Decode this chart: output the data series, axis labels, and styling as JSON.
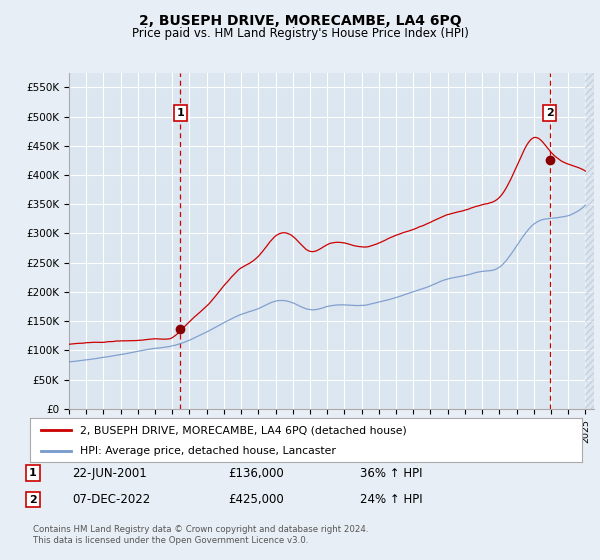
{
  "title": "2, BUSEPH DRIVE, MORECAMBE, LA4 6PQ",
  "subtitle": "Price paid vs. HM Land Registry's House Price Index (HPI)",
  "background_color": "#e8eef5",
  "plot_bg_color": "#dce6f0",
  "red_line_color": "#cc0000",
  "blue_line_color": "#7799cc",
  "grid_color": "#c8d4e8",
  "ylim": [
    0,
    575000
  ],
  "yticks": [
    0,
    50000,
    100000,
    150000,
    200000,
    250000,
    300000,
    350000,
    400000,
    450000,
    500000,
    550000
  ],
  "ytick_labels": [
    "£0",
    "£50K",
    "£100K",
    "£150K",
    "£200K",
    "£250K",
    "£300K",
    "£350K",
    "£400K",
    "£450K",
    "£500K",
    "£550K"
  ],
  "legend_label_red": "2, BUSEPH DRIVE, MORECAMBE, LA4 6PQ (detached house)",
  "legend_label_blue": "HPI: Average price, detached house, Lancaster",
  "sale1_date": "22-JUN-2001",
  "sale1_price": "£136,000",
  "sale1_hpi": "36% ↑ HPI",
  "sale2_date": "07-DEC-2022",
  "sale2_price": "£425,000",
  "sale2_hpi": "24% ↑ HPI",
  "footer": "Contains HM Land Registry data © Crown copyright and database right 2024.\nThis data is licensed under the Open Government Licence v3.0.",
  "vline1_x_year": 2001.47,
  "vline2_x_year": 2022.92,
  "marker1_y": 136000,
  "marker2_y": 425000,
  "xlim_start": 1995.0,
  "xlim_end": 2025.5
}
